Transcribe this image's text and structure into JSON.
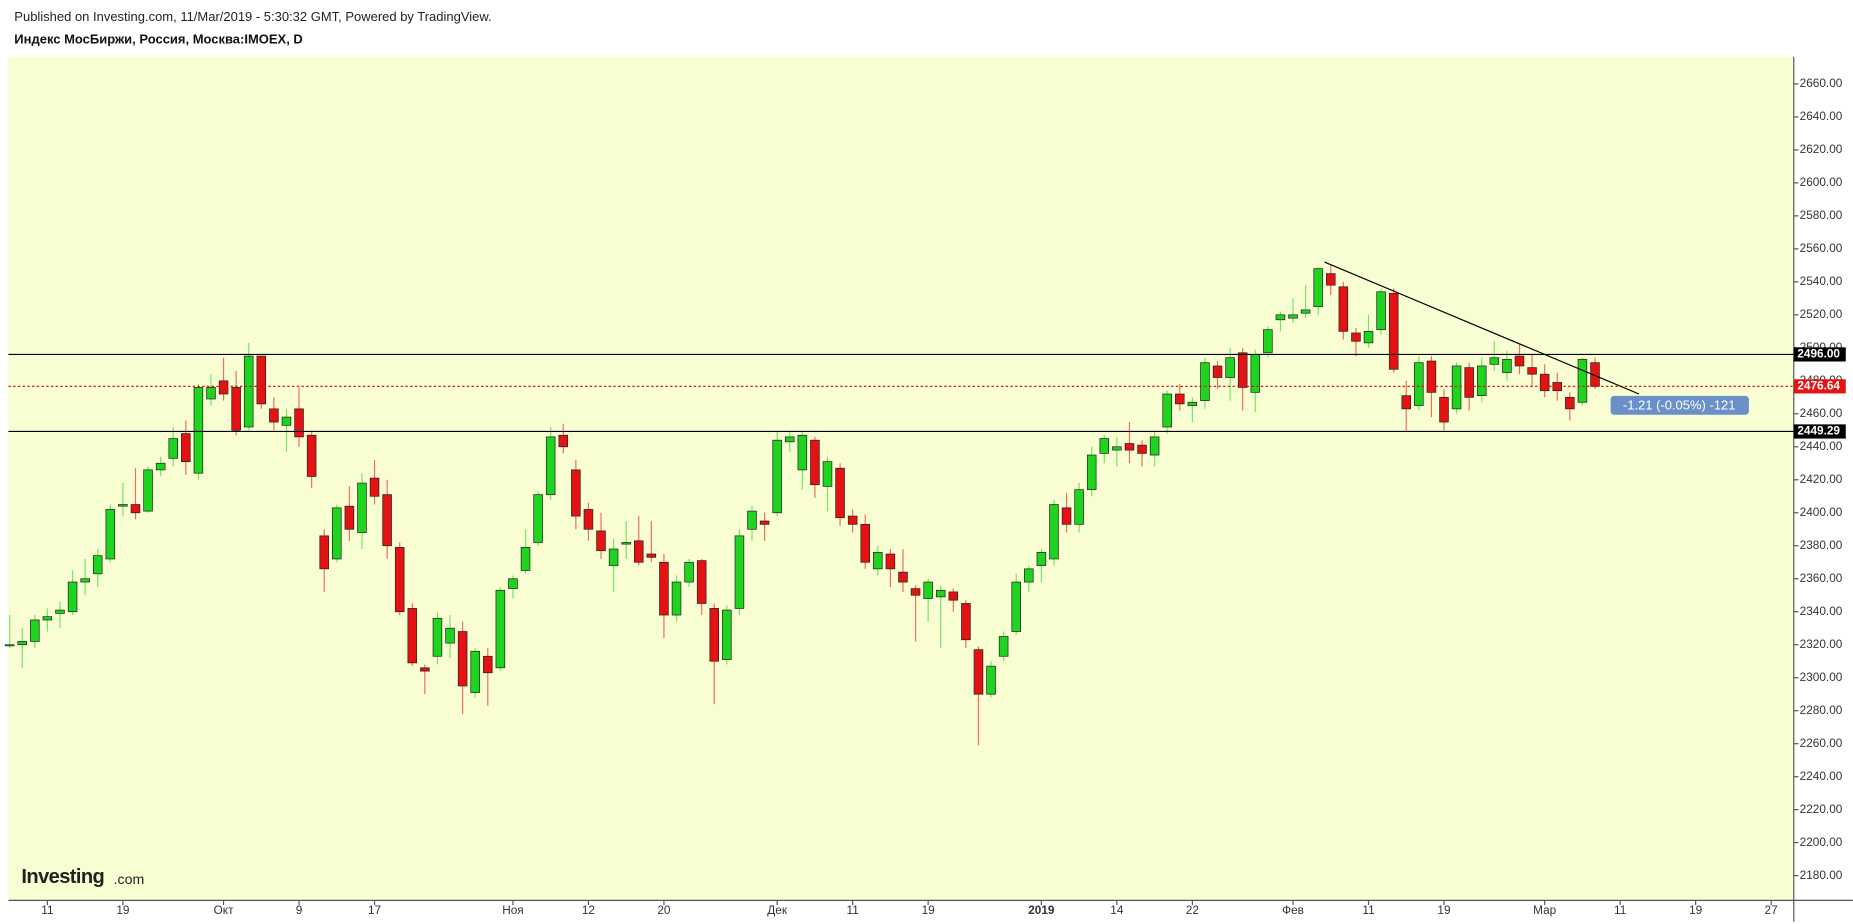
{
  "header": {
    "published": "Published on Investing.com, 11/Mar/2019 - 5:30:32 GMT, Powered by TradingView.",
    "watermark_brand": "Investing",
    "watermark_domain": ".com"
  },
  "chart_data": {
    "type": "candlestick",
    "title": "Индекс МосБиржи, Россия, Москва:IMOEX, D",
    "up_color": "#1fd41f",
    "down_color": "#e41212",
    "open": [
      2320,
      2320,
      2322,
      2335,
      2339,
      2340,
      2358,
      2363,
      2372,
      2404,
      2405,
      2401,
      2426,
      2433,
      2448,
      2424,
      2469,
      2480,
      2476,
      2452,
      2495,
      2463,
      2453,
      2463,
      2447,
      2386,
      2372,
      2404,
      2388,
      2421,
      2411,
      2379,
      2342,
      2306,
      2313,
      2321,
      2328,
      2291,
      2313,
      2306,
      2354,
      2365,
      2382,
      2411,
      2447,
      2426,
      2402,
      2389,
      2368,
      2381,
      2383,
      2375,
      2370,
      2338,
      2358,
      2371,
      2342,
      2311,
      2342,
      2390,
      2395,
      2400,
      2443,
      2426,
      2444,
      2416,
      2427,
      2398,
      2393,
      2366,
      2375,
      2364,
      2354,
      2348,
      2349,
      2352,
      2345,
      2317,
      2290,
      2313,
      2328,
      2358,
      2368,
      2372,
      2403,
      2393,
      2414,
      2436,
      2438,
      2442,
      2441,
      2435,
      2452,
      2472,
      2465,
      2468,
      2489,
      2482,
      2497,
      2473,
      2497,
      2517,
      2518,
      2521,
      2525,
      2545,
      2537,
      2509,
      2503,
      2511,
      2533,
      2471,
      2465,
      2492,
      2470,
      2463,
      2488,
      2471,
      2490,
      2485,
      2495,
      2488,
      2484,
      2479,
      2470,
      2467,
      2491
    ],
    "high": [
      2338,
      2330,
      2338,
      2342,
      2346,
      2365,
      2372,
      2378,
      2405,
      2418,
      2427,
      2428,
      2434,
      2452,
      2456,
      2478,
      2484,
      2494,
      2486,
      2503,
      2494,
      2470,
      2463,
      2476,
      2450,
      2390,
      2405,
      2416,
      2424,
      2432,
      2420,
      2382,
      2345,
      2308,
      2340,
      2338,
      2334,
      2318,
      2318,
      2355,
      2362,
      2390,
      2413,
      2452,
      2454,
      2432,
      2406,
      2400,
      2384,
      2395,
      2398,
      2395,
      2375,
      2362,
      2372,
      2372,
      2345,
      2344,
      2390,
      2404,
      2400,
      2449,
      2450,
      2449,
      2446,
      2434,
      2430,
      2402,
      2399,
      2380,
      2378,
      2378,
      2356,
      2360,
      2356,
      2354,
      2347,
      2319,
      2310,
      2328,
      2363,
      2368,
      2378,
      2408,
      2412,
      2418,
      2440,
      2447,
      2446,
      2455,
      2444,
      2450,
      2474,
      2478,
      2470,
      2494,
      2492,
      2500,
      2500,
      2499,
      2513,
      2522,
      2530,
      2538,
      2549,
      2550,
      2540,
      2512,
      2520,
      2536,
      2536,
      2480,
      2495,
      2495,
      2475,
      2491,
      2491,
      2494,
      2504,
      2498,
      2502,
      2496,
      2490,
      2485,
      2473,
      2494,
      2494
    ],
    "low": [
      2318,
      2306,
      2318,
      2328,
      2330,
      2338,
      2350,
      2355,
      2370,
      2398,
      2396,
      2400,
      2422,
      2428,
      2423,
      2420,
      2465,
      2468,
      2447,
      2450,
      2463,
      2450,
      2437,
      2440,
      2415,
      2352,
      2370,
      2383,
      2378,
      2405,
      2372,
      2338,
      2307,
      2290,
      2308,
      2312,
      2278,
      2288,
      2283,
      2304,
      2348,
      2363,
      2380,
      2408,
      2436,
      2390,
      2383,
      2372,
      2352,
      2372,
      2368,
      2370,
      2324,
      2334,
      2355,
      2338,
      2284,
      2308,
      2338,
      2383,
      2383,
      2398,
      2437,
      2414,
      2409,
      2401,
      2392,
      2388,
      2366,
      2362,
      2355,
      2352,
      2322,
      2334,
      2318,
      2340,
      2318,
      2259,
      2288,
      2310,
      2326,
      2352,
      2358,
      2368,
      2388,
      2388,
      2410,
      2430,
      2428,
      2430,
      2428,
      2428,
      2448,
      2462,
      2455,
      2463,
      2475,
      2468,
      2462,
      2461,
      2494,
      2510,
      2515,
      2518,
      2520,
      2532,
      2505,
      2495,
      2500,
      2508,
      2485,
      2449,
      2462,
      2458,
      2450,
      2460,
      2462,
      2467,
      2486,
      2480,
      2484,
      2476,
      2470,
      2468,
      2456,
      2465,
      2475
    ],
    "close": [
      2320,
      2322,
      2335,
      2337,
      2341,
      2358,
      2360,
      2374,
      2402,
      2405,
      2400,
      2426,
      2430,
      2445,
      2431,
      2476,
      2476,
      2472,
      2450,
      2495,
      2466,
      2455,
      2458,
      2446,
      2422,
      2366,
      2403,
      2390,
      2418,
      2410,
      2380,
      2340,
      2309,
      2304,
      2336,
      2330,
      2295,
      2316,
      2303,
      2353,
      2360,
      2379,
      2411,
      2446,
      2440,
      2398,
      2390,
      2377,
      2378,
      2382,
      2370,
      2373,
      2338,
      2358,
      2370,
      2345,
      2310,
      2341,
      2386,
      2401,
      2393,
      2444,
      2446,
      2447,
      2417,
      2431,
      2397,
      2393,
      2370,
      2376,
      2366,
      2358,
      2350,
      2358,
      2353,
      2347,
      2323,
      2290,
      2307,
      2325,
      2358,
      2366,
      2376,
      2405,
      2393,
      2414,
      2435,
      2445,
      2440,
      2438,
      2436,
      2446,
      2472,
      2466,
      2467,
      2491,
      2482,
      2494,
      2476,
      2496,
      2511,
      2520,
      2520,
      2523,
      2548,
      2538,
      2510,
      2504,
      2510,
      2534,
      2487,
      2463,
      2491,
      2473,
      2455,
      2489,
      2470,
      2489,
      2494,
      2493,
      2489,
      2484,
      2474,
      2474,
      2463,
      2493,
      2476.64
    ],
    "current_price_label": "2476.64",
    "current_price_color": "#e41212",
    "levels": [
      {
        "value": 2496.0,
        "label": "2496.00",
        "color": "#000000"
      },
      {
        "value": 2449.29,
        "label": "2449.29",
        "color": "#000000"
      }
    ],
    "trendline": {
      "start": [
        104.5,
        2552
      ],
      "end": [
        129.5,
        2472
      ],
      "color": "#000000"
    },
    "tooltip": "-1.21 (-0.05%) -121",
    "xlim": [
      -0.1,
      141.8
    ],
    "ylim": [
      2165,
      2676.5
    ],
    "xticks": [
      {
        "value": 3,
        "label": "11"
      },
      {
        "value": 9,
        "label": "19"
      },
      {
        "value": 17,
        "label": "Окт"
      },
      {
        "value": 23,
        "label": "9"
      },
      {
        "value": 29,
        "label": "17"
      },
      {
        "value": 40,
        "label": "Ноя"
      },
      {
        "value": 46,
        "label": "12"
      },
      {
        "value": 52,
        "label": "20"
      },
      {
        "value": 61,
        "label": "Дек"
      },
      {
        "value": 67,
        "label": "11"
      },
      {
        "value": 73,
        "label": "19"
      },
      {
        "value": 82,
        "label": "2019"
      },
      {
        "value": 88,
        "label": "14"
      },
      {
        "value": 94,
        "label": "22"
      },
      {
        "value": 102,
        "label": "Фев"
      },
      {
        "value": 108,
        "label": "11"
      },
      {
        "value": 114,
        "label": "19"
      },
      {
        "value": 122,
        "label": "Мар"
      },
      {
        "value": 128,
        "label": "11"
      },
      {
        "value": 134,
        "label": "19"
      },
      {
        "value": 140,
        "label": "27"
      }
    ],
    "yticks": [
      {
        "value": 2180,
        "label": "2180.00"
      },
      {
        "value": 2200,
        "label": "2200.00"
      },
      {
        "value": 2220,
        "label": "2220.00"
      },
      {
        "value": 2240,
        "label": "2240.00"
      },
      {
        "value": 2260,
        "label": "2260.00"
      },
      {
        "value": 2280,
        "label": "2280.00"
      },
      {
        "value": 2300,
        "label": "2300.00"
      },
      {
        "value": 2320,
        "label": "2320.00"
      },
      {
        "value": 2340,
        "label": "2340.00"
      },
      {
        "value": 2360,
        "label": "2360.00"
      },
      {
        "value": 2380,
        "label": "2380.00"
      },
      {
        "value": 2400,
        "label": "2400.00"
      },
      {
        "value": 2420,
        "label": "2420.00"
      },
      {
        "value": 2440,
        "label": "2440.00"
      },
      {
        "value": 2460,
        "label": "2460.00"
      },
      {
        "value": 2480,
        "label": "2480.00"
      },
      {
        "value": 2500,
        "label": "2500.00"
      },
      {
        "value": 2520,
        "label": "2520.00"
      },
      {
        "value": 2540,
        "label": "2540.00"
      },
      {
        "value": 2560,
        "label": "2560.00"
      },
      {
        "value": 2580,
        "label": "2580.00"
      },
      {
        "value": 2600,
        "label": "2600.00"
      },
      {
        "value": 2620,
        "label": "2620.00"
      },
      {
        "value": 2640,
        "label": "2640.00"
      },
      {
        "value": 2660,
        "label": "2660.00"
      }
    ],
    "grid": false
  }
}
